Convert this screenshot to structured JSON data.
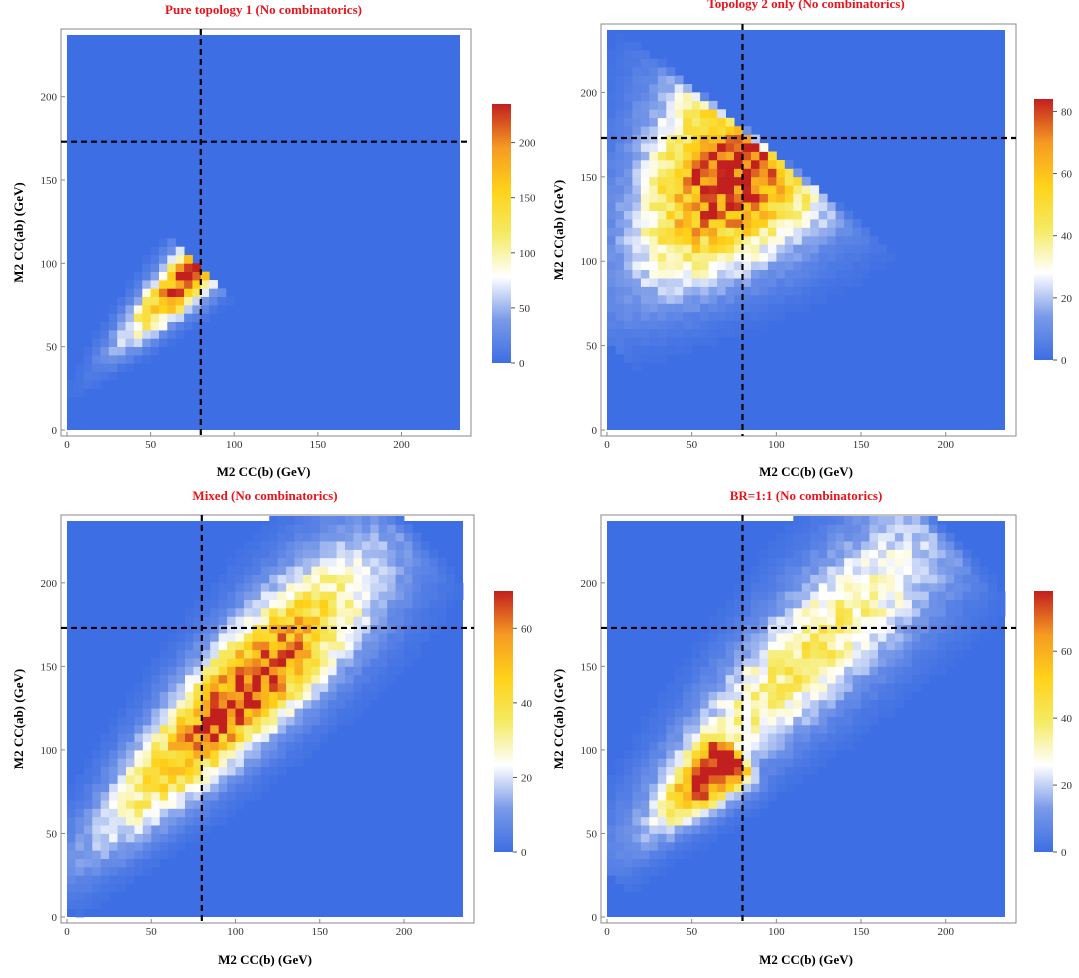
{
  "colors": {
    "title": "#e8141b",
    "background": "#3d6ee3",
    "frame": "#888888",
    "guide_lines": "#000000",
    "colorscale": [
      "#3d6ee3",
      "#7a9ae8",
      "#ffffff",
      "#f5ea63",
      "#ffd21a",
      "#f59a22",
      "#c21f1f"
    ]
  },
  "axis_labels": {
    "x": "M2 CC(b) (GeV)",
    "y": "M2 CC(ab) (GeV)"
  },
  "chart_data": [
    {
      "type": "heatmap",
      "title": "Pure topology 1 (No combinatorics)",
      "xlabel": "M2 CC(b) (GeV)",
      "ylabel": "M2 CC(ab) (GeV)",
      "xlim": [
        0,
        235
      ],
      "ylim": [
        0,
        237
      ],
      "xticks": [
        0,
        50,
        100,
        150,
        200
      ],
      "yticks": [
        0,
        50,
        100,
        150,
        200
      ],
      "guide_lines": {
        "x": 80,
        "y": 173
      },
      "colorbar": {
        "min": 0,
        "max": 235,
        "ticks": [
          0,
          50,
          100,
          150,
          200
        ]
      },
      "clusters": [
        {
          "x1": 0,
          "y1": 20,
          "x2": 78,
          "y2": 97,
          "width": 8,
          "peak": 235,
          "peak_at": 0.95,
          "spread": 0.45
        }
      ]
    },
    {
      "type": "heatmap",
      "title": "Topology 2 only (No combinatorics)",
      "xlabel": "M2 CC(b) (GeV)",
      "ylabel": "M2 CC(ab) (GeV)",
      "xlim": [
        0,
        235
      ],
      "ylim": [
        0,
        237
      ],
      "xticks": [
        0,
        50,
        100,
        150,
        200
      ],
      "yticks": [
        0,
        50,
        100,
        150,
        200
      ],
      "guide_lines": {
        "x": 80,
        "y": 173
      },
      "colorbar": {
        "min": 0,
        "max": 84,
        "ticks": [
          0,
          20,
          40,
          60,
          80
        ]
      },
      "clusters": [
        {
          "x1": 0,
          "y1": 60,
          "x2": 88,
          "y2": 168,
          "width": 30,
          "peak": 84,
          "peak_at": 0.85,
          "spread": 0.5
        }
      ]
    },
    {
      "type": "heatmap",
      "title": "Mixed (No combinatorics)",
      "xlabel": "M2 CC(b) (GeV)",
      "ylabel": "M2 CC(ab) (GeV)",
      "xlim": [
        0,
        235
      ],
      "ylim": [
        0,
        237
      ],
      "xticks": [
        0,
        50,
        100,
        150,
        200
      ],
      "yticks": [
        0,
        50,
        100,
        150,
        200
      ],
      "guide_lines": {
        "x": 80,
        "y": 173
      },
      "colorbar": {
        "min": 0,
        "max": 70,
        "ticks": [
          0,
          20,
          40,
          60
        ]
      },
      "clusters": [
        {
          "x1": 0,
          "y1": 25,
          "x2": 195,
          "y2": 230,
          "width": 20,
          "peak": 70,
          "peak_at": 0.52,
          "spread": 0.35
        }
      ]
    },
    {
      "type": "heatmap",
      "title": "BR=1:1 (No combinatorics)",
      "xlabel": "M2 CC(b) (GeV)",
      "ylabel": "M2 CC(ab) (GeV)",
      "xlim": [
        0,
        235
      ],
      "ylim": [
        0,
        237
      ],
      "xticks": [
        0,
        50,
        100,
        150,
        200
      ],
      "yticks": [
        0,
        50,
        100,
        150,
        200
      ],
      "guide_lines": {
        "x": 80,
        "y": 173
      },
      "colorbar": {
        "min": 0,
        "max": 78,
        "ticks": [
          0,
          20,
          40,
          60
        ]
      },
      "clusters": [
        {
          "x1": 0,
          "y1": 25,
          "x2": 75,
          "y2": 97,
          "width": 9,
          "peak": 78,
          "peak_at": 0.92,
          "spread": 0.4
        },
        {
          "x1": 5,
          "y1": 40,
          "x2": 190,
          "y2": 230,
          "width": 22,
          "peak": 40,
          "peak_at": 0.6,
          "spread": 0.45
        }
      ]
    }
  ]
}
